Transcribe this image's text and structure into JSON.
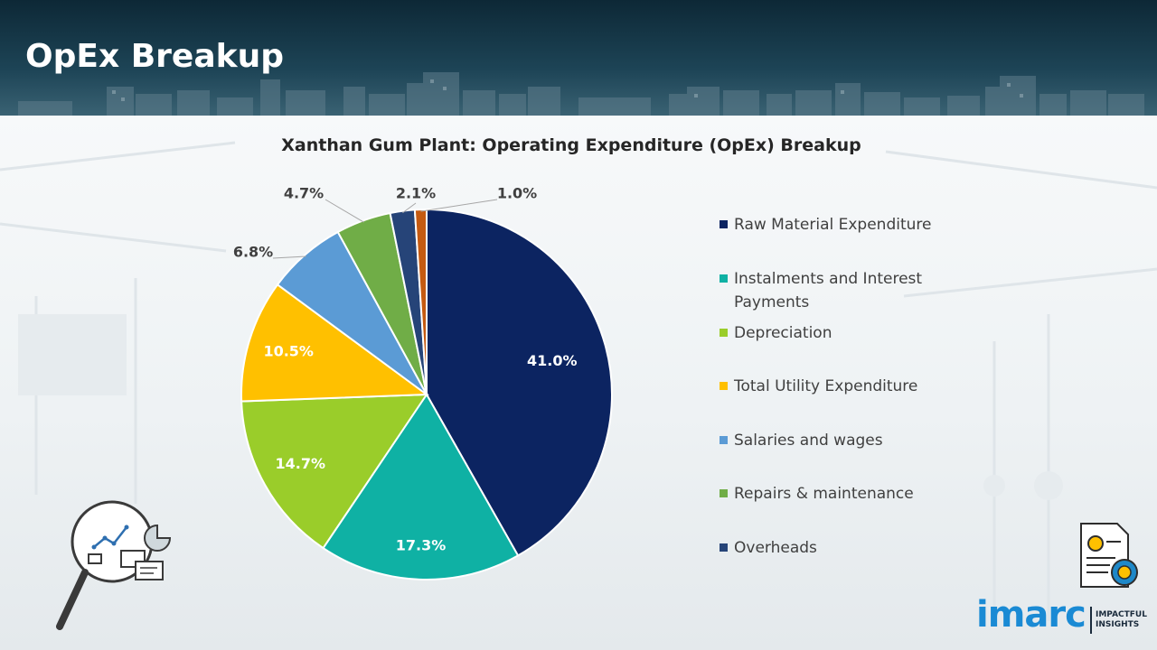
{
  "header": {
    "title": "OpEx Breakup"
  },
  "chart_data": {
    "type": "pie",
    "title": "Xanthan Gum Plant: Operating Expenditure (OpEx) Breakup",
    "unit": "%",
    "legend_position": "right",
    "slices": [
      {
        "label": "Raw Material Expenditure",
        "value": 41.0,
        "display": "41.0%",
        "color": "#0c2461"
      },
      {
        "label": "Instalments and Interest Payments",
        "value": 17.3,
        "display": "17.3%",
        "color": "#0fb1a4"
      },
      {
        "label": "Depreciation",
        "value": 14.7,
        "display": "14.7%",
        "color": "#9acd2a"
      },
      {
        "label": "Total Utility Expenditure",
        "value": 10.5,
        "display": "10.5%",
        "color": "#ffc000"
      },
      {
        "label": "Salaries and wages",
        "value": 6.8,
        "display": "6.8%",
        "color": "#5b9bd5"
      },
      {
        "label": "Repairs & maintenance",
        "value": 4.7,
        "display": "4.7%",
        "color": "#70ad47"
      },
      {
        "label": "Overheads",
        "value": 2.1,
        "display": "2.1%",
        "color": "#264478"
      },
      {
        "label": "",
        "value": 1.0,
        "display": "1.0%",
        "color": "#c55a11"
      }
    ]
  },
  "logo": {
    "word": "imarc",
    "tagline_1": "IMPACTFUL",
    "tagline_2": "INSIGHTS",
    "color": "#1a8ad4"
  },
  "icons": {
    "left": "analytics-magnifier-icon",
    "right": "finance-document-icon"
  }
}
